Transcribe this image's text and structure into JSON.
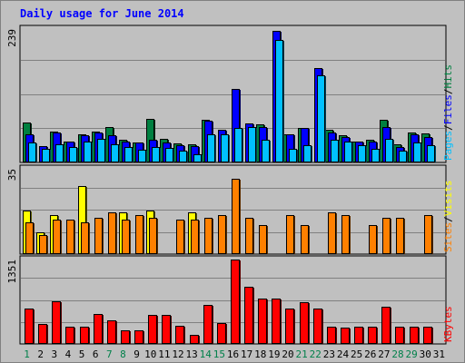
{
  "chart_data": [
    {
      "type": "bar",
      "title": "Daily usage for June 2014",
      "ymax_label": "239",
      "legend": [
        {
          "name": "Pages",
          "color": "#00c0ff"
        },
        {
          "name": "Files",
          "color": "#0000ff"
        },
        {
          "name": "Hits",
          "color": "#008040"
        }
      ],
      "separator": "/",
      "categories": [
        "1",
        "2",
        "3",
        "4",
        "5",
        "6",
        "7",
        "8",
        "9",
        "10",
        "11",
        "12",
        "13",
        "14",
        "15",
        "16",
        "17",
        "18",
        "19",
        "20",
        "21",
        "22",
        "23",
        "24",
        "25",
        "26",
        "27",
        "28",
        "29",
        "30",
        "31"
      ],
      "weekend_days": [
        "1",
        "7",
        "8",
        "14",
        "15",
        "21",
        "22",
        "28",
        "29"
      ],
      "ylim": [
        0,
        239
      ],
      "series": [
        {
          "name": "Hits",
          "values": [
            72,
            null,
            56,
            38,
            50,
            55,
            63,
            40,
            36,
            78,
            43,
            34,
            33,
            77,
            null,
            null,
            null,
            68,
            null,
            51,
            61,
            null,
            58,
            49,
            38,
            41,
            77,
            32,
            53,
            52,
            null
          ]
        },
        {
          "name": "Files",
          "values": [
            51,
            30,
            53,
            38,
            49,
            53,
            49,
            37,
            36,
            41,
            36,
            31,
            29,
            74,
            58,
            131,
            70,
            64,
            236,
            51,
            61,
            169,
            53,
            46,
            38,
            37,
            63,
            28,
            50,
            46,
            null
          ]
        },
        {
          "name": "Pages",
          "values": [
            36,
            24,
            33,
            28,
            38,
            42,
            32,
            27,
            22,
            27,
            26,
            21,
            14,
            50,
            51,
            62,
            63,
            41,
            220,
            24,
            31,
            156,
            41,
            37,
            31,
            24,
            42,
            21,
            36,
            31,
            null
          ]
        }
      ]
    },
    {
      "type": "bar",
      "ymax_label": "35",
      "legend": [
        {
          "name": "Sites",
          "color": "#ff8000"
        },
        {
          "name": "Visits",
          "color": "#ffff00"
        }
      ],
      "separator": "/",
      "ylim": [
        0,
        35
      ],
      "series": [
        {
          "name": "Visits",
          "values": [
            18,
            9,
            16,
            null,
            28,
            null,
            null,
            17,
            null,
            18,
            null,
            null,
            17,
            null,
            null,
            null,
            null,
            null,
            null,
            null,
            null,
            null,
            null,
            null,
            null,
            null,
            null,
            null,
            null,
            null,
            null
          ]
        },
        {
          "name": "Sites",
          "values": [
            13,
            8,
            14,
            14,
            13,
            15,
            17,
            14,
            16,
            15,
            null,
            14,
            14,
            15,
            16,
            31,
            15,
            12,
            null,
            16,
            12,
            null,
            17,
            16,
            null,
            12,
            15,
            15,
            null,
            16,
            null
          ]
        }
      ]
    },
    {
      "type": "bar",
      "ymax_label": "1351",
      "legend": [
        {
          "name": "KBytes",
          "color": "#ff0000"
        }
      ],
      "ylim": [
        0,
        1351
      ],
      "series": [
        {
          "name": "KBytes",
          "values": [
            560,
            320,
            680,
            270,
            270,
            480,
            380,
            220,
            220,
            460,
            460,
            290,
            150,
            620,
            330,
            1351,
            920,
            720,
            730,
            570,
            670,
            560,
            270,
            260,
            270,
            270,
            600,
            280,
            270,
            280,
            null
          ]
        }
      ]
    }
  ]
}
